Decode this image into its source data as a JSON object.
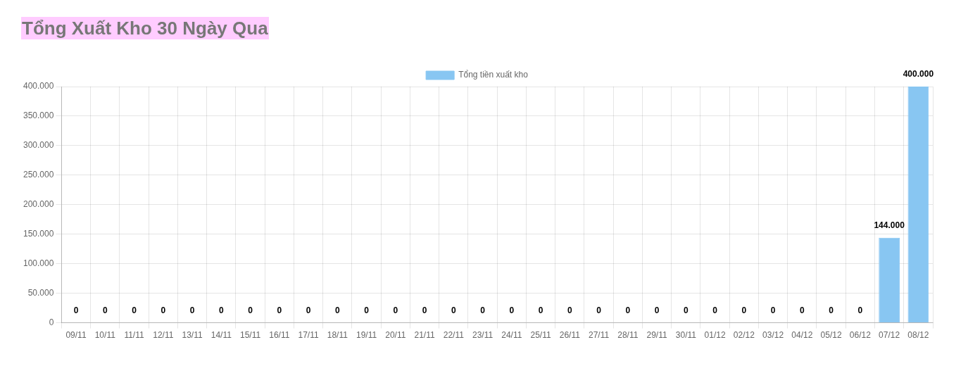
{
  "chart_data": {
    "type": "bar",
    "title": "Tổng Xuất Kho 30 Ngày Qua",
    "categories": [
      "09/11",
      "10/11",
      "11/11",
      "12/11",
      "13/11",
      "14/11",
      "15/11",
      "16/11",
      "17/11",
      "18/11",
      "19/11",
      "20/11",
      "21/11",
      "22/11",
      "23/11",
      "24/11",
      "25/11",
      "26/11",
      "27/11",
      "28/11",
      "29/11",
      "30/11",
      "01/12",
      "02/12",
      "03/12",
      "04/12",
      "05/12",
      "06/12",
      "07/12",
      "08/12"
    ],
    "series": [
      {
        "name": "Tổng tiền xuất kho",
        "color": "#88c6f2",
        "values": [
          0,
          0,
          0,
          0,
          0,
          0,
          0,
          0,
          0,
          0,
          0,
          0,
          0,
          0,
          0,
          0,
          0,
          0,
          0,
          0,
          0,
          0,
          0,
          0,
          0,
          0,
          0,
          0,
          144000,
          400000
        ],
        "value_labels": [
          "0",
          "0",
          "0",
          "0",
          "0",
          "0",
          "0",
          "0",
          "0",
          "0",
          "0",
          "0",
          "0",
          "0",
          "0",
          "0",
          "0",
          "0",
          "0",
          "0",
          "0",
          "0",
          "0",
          "0",
          "0",
          "0",
          "0",
          "0",
          "144.000",
          "400.000"
        ]
      }
    ],
    "ylim": [
      0,
      400000
    ],
    "yticks": [
      0,
      {
        "value": 50000,
        "label": "50.000"
      },
      {
        "value": 100000,
        "label": "100.000"
      },
      {
        "value": 150000,
        "label": "150.000"
      },
      {
        "value": 200000,
        "label": "200.000"
      },
      {
        "value": 250000,
        "label": "250.000"
      },
      {
        "value": 300000,
        "label": "300.000"
      },
      {
        "value": 350000,
        "label": "350.000"
      },
      {
        "value": 400000,
        "label": "400.000"
      }
    ],
    "grid": true,
    "legend": "top"
  }
}
